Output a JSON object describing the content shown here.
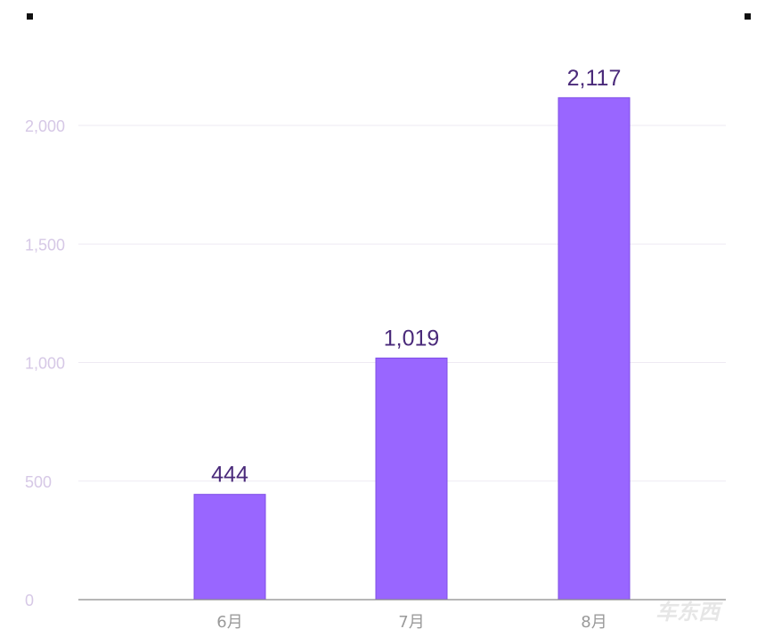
{
  "chart_data": {
    "type": "bar",
    "categories": [
      "6月",
      "7月",
      "8月"
    ],
    "values": [
      444,
      1019,
      2117
    ],
    "value_labels": [
      "444",
      "1,019",
      "2,117"
    ],
    "ylim": [
      0,
      2250
    ],
    "yticks": [
      0,
      500,
      1000,
      1500,
      2000
    ],
    "ytick_labels": [
      "0",
      "500",
      "1,000",
      "1,500",
      "2,000"
    ],
    "grid": true,
    "legend": "none"
  },
  "colors": {
    "bar": "#9966ff",
    "bar_edge": "#7f4fe6",
    "value_label": "#4a2a7a",
    "axis_label": "#d6c8e6",
    "grid": "#eeeaf3",
    "baseline": "#8a8a8a",
    "category_label": "#9a9a9a"
  },
  "watermark": {
    "text": "车东西"
  }
}
